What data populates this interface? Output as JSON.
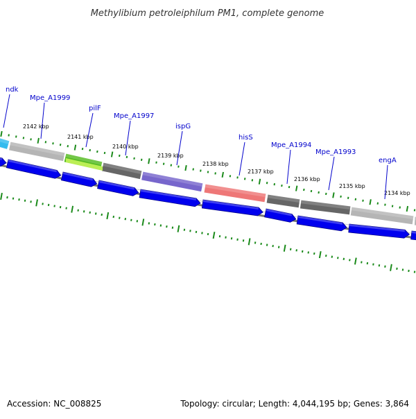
{
  "title": "Methylibium petroleiphilum PM1, complete genome",
  "footer": {
    "accession": "Accession: NC_008825",
    "summary": "Topology: circular; Length: 4,044,195 bp; Genes: 3,864"
  },
  "colors": {
    "backbone": "#777777",
    "tick": "#1a8a1a",
    "cds": "#0000ee",
    "gene_label": "#0000cc"
  },
  "kbp_labels": [
    "2142 kbp",
    "2141 kbp",
    "2140 kbp",
    "2139 kbp",
    "2138 kbp",
    "2137 kbp",
    "2136 kbp",
    "2135 kbp",
    "2134 kbp"
  ],
  "gene_labels": [
    "ndk",
    "Mpe_A1999",
    "pilF",
    "Mpe_A1997",
    "ispG",
    "hisS",
    "Mpe_A1994",
    "Mpe_A1993",
    "engA"
  ],
  "features": [
    {
      "name": "ndk",
      "color": "#33bbee"
    },
    {
      "name": "Mpe_A1999",
      "color": "#b5b5b5"
    },
    {
      "name": "pilF",
      "color": "#55bb22"
    },
    {
      "name": "Mpe_A1997",
      "color": "#666666"
    },
    {
      "name": "ispG",
      "color": "#7766cc"
    },
    {
      "name": "hisS",
      "color": "#ee7777"
    },
    {
      "name": "Mpe_A1994",
      "color": "#666666"
    },
    {
      "name": "Mpe_A1993",
      "color": "#666666"
    },
    {
      "name": "engA",
      "color": "#b5b5b5"
    }
  ]
}
